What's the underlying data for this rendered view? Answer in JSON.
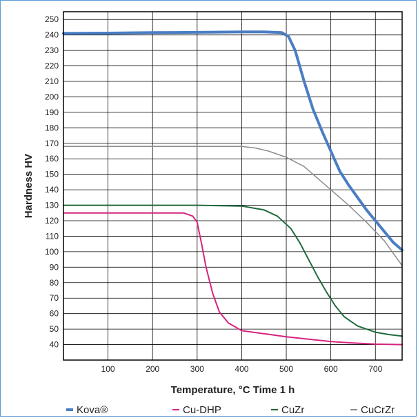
{
  "chart_data": {
    "type": "line",
    "title": "",
    "xlabel": "Temperature, °C  Time 1 h",
    "ylabel": "Hardness  HV",
    "xlim": [
      0,
      760
    ],
    "ylim": [
      30,
      255
    ],
    "x_ticks": [
      100,
      200,
      300,
      400,
      500,
      600,
      700
    ],
    "y_ticks": [
      40,
      50,
      60,
      70,
      80,
      90,
      100,
      110,
      120,
      130,
      140,
      150,
      160,
      170,
      180,
      190,
      200,
      210,
      220,
      230,
      240,
      250
    ],
    "grid": true,
    "legend_position": "bottom",
    "series": [
      {
        "name": "Kova®",
        "color": "#4a7ec4",
        "width": 4,
        "points": [
          [
            0,
            241
          ],
          [
            100,
            241.2
          ],
          [
            200,
            241.5
          ],
          [
            300,
            241.7
          ],
          [
            400,
            242
          ],
          [
            450,
            242
          ],
          [
            490,
            241.5
          ],
          [
            505,
            239
          ],
          [
            520,
            230
          ],
          [
            540,
            210
          ],
          [
            560,
            192
          ],
          [
            580,
            178
          ],
          [
            600,
            165
          ],
          [
            620,
            152
          ],
          [
            640,
            143
          ],
          [
            660,
            135
          ],
          [
            680,
            127
          ],
          [
            700,
            120
          ],
          [
            720,
            113
          ],
          [
            740,
            106
          ],
          [
            760,
            101
          ]
        ]
      },
      {
        "name": "Cu-DHP",
        "color": "#d6237f",
        "width": 2,
        "points": [
          [
            0,
            125
          ],
          [
            100,
            125
          ],
          [
            200,
            125
          ],
          [
            270,
            125
          ],
          [
            290,
            123
          ],
          [
            300,
            119
          ],
          [
            310,
            105
          ],
          [
            320,
            90
          ],
          [
            335,
            73
          ],
          [
            350,
            61
          ],
          [
            370,
            54
          ],
          [
            400,
            49
          ],
          [
            450,
            47
          ],
          [
            500,
            45
          ],
          [
            550,
            43.5
          ],
          [
            600,
            42
          ],
          [
            650,
            41
          ],
          [
            700,
            40.3
          ],
          [
            760,
            40
          ]
        ]
      },
      {
        "name": "CuZr",
        "color": "#1f6b3e",
        "width": 2,
        "points": [
          [
            0,
            130
          ],
          [
            100,
            130
          ],
          [
            200,
            130
          ],
          [
            300,
            130
          ],
          [
            400,
            129.5
          ],
          [
            450,
            127
          ],
          [
            480,
            123
          ],
          [
            510,
            115
          ],
          [
            530,
            106
          ],
          [
            550,
            95
          ],
          [
            570,
            84
          ],
          [
            590,
            74
          ],
          [
            610,
            65
          ],
          [
            630,
            58
          ],
          [
            660,
            52
          ],
          [
            700,
            48
          ],
          [
            730,
            46.5
          ],
          [
            760,
            45.5
          ]
        ]
      },
      {
        "name": "CuCrZr",
        "color": "#8c8c8c",
        "width": 1.5,
        "points": [
          [
            0,
            168
          ],
          [
            100,
            168
          ],
          [
            200,
            168
          ],
          [
            300,
            168
          ],
          [
            400,
            168
          ],
          [
            430,
            167
          ],
          [
            460,
            165
          ],
          [
            500,
            161
          ],
          [
            540,
            155
          ],
          [
            580,
            145
          ],
          [
            600,
            140
          ],
          [
            640,
            130
          ],
          [
            680,
            119
          ],
          [
            720,
            107
          ],
          [
            760,
            91
          ]
        ]
      }
    ]
  }
}
